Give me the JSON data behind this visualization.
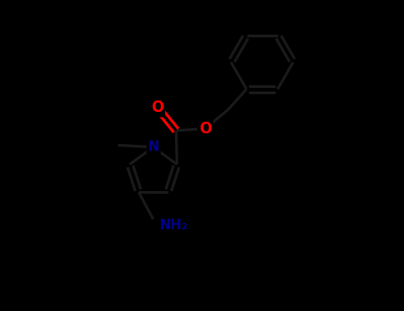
{
  "background_color": "#000000",
  "bond_color": "#1a1a1a",
  "O_color": "#ff0000",
  "N_color": "#00008b",
  "C_color": "#1a1a1a",
  "figsize": [
    4.55,
    3.5
  ],
  "dpi": 100,
  "xlim": [
    -3.0,
    4.5
  ],
  "ylim": [
    -3.5,
    4.0
  ],
  "bond_lw": 2.2,
  "font_size_atom": 11
}
